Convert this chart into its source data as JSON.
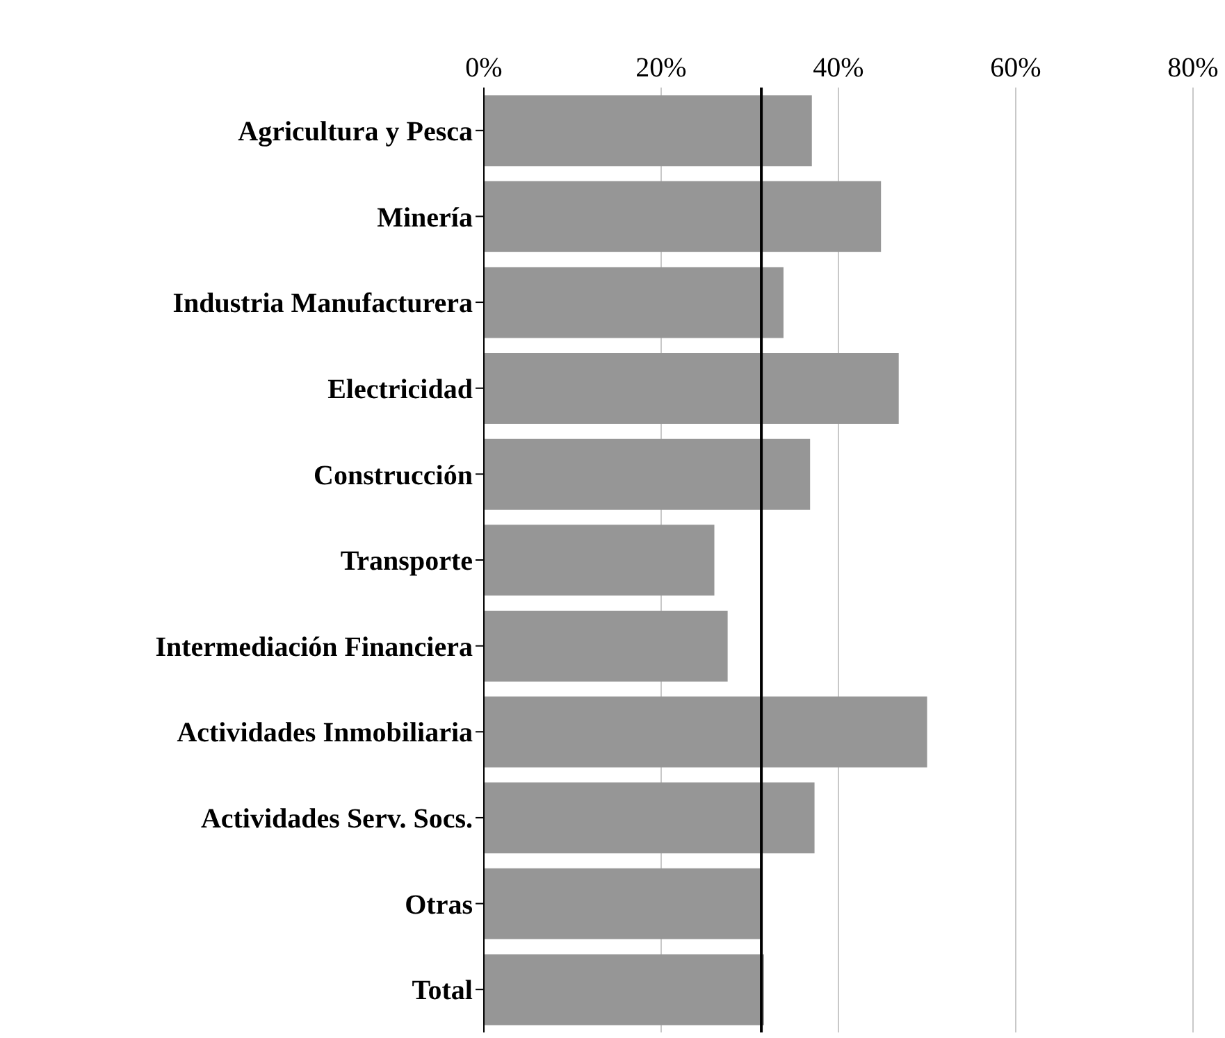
{
  "chart_data": {
    "type": "bar",
    "orientation": "horizontal",
    "categories": [
      "Agricultura y Pesca",
      "Minería",
      "Industria Manufacturera",
      "Electricidad",
      "Construcción",
      "Transporte",
      "Intermediación Financiera",
      "Actividades Inmobiliaria",
      "Actividades Serv. Socs.",
      "Otras",
      "Total"
    ],
    "values": [
      37,
      44.8,
      33.8,
      46.8,
      36.8,
      26,
      27.5,
      50,
      37.3,
      31.3,
      31.6
    ],
    "color": "#969696",
    "xlim": [
      0,
      80
    ],
    "xticks": [
      {
        "value": 0,
        "label": "0%"
      },
      {
        "value": 20,
        "label": "20%"
      },
      {
        "value": 40,
        "label": "40%"
      },
      {
        "value": 60,
        "label": "60%"
      },
      {
        "value": 80,
        "label": "80%"
      }
    ],
    "grid": "x",
    "ref_lines": [
      {
        "axis": "x",
        "value": 31.3,
        "color": "#000000"
      }
    ]
  }
}
